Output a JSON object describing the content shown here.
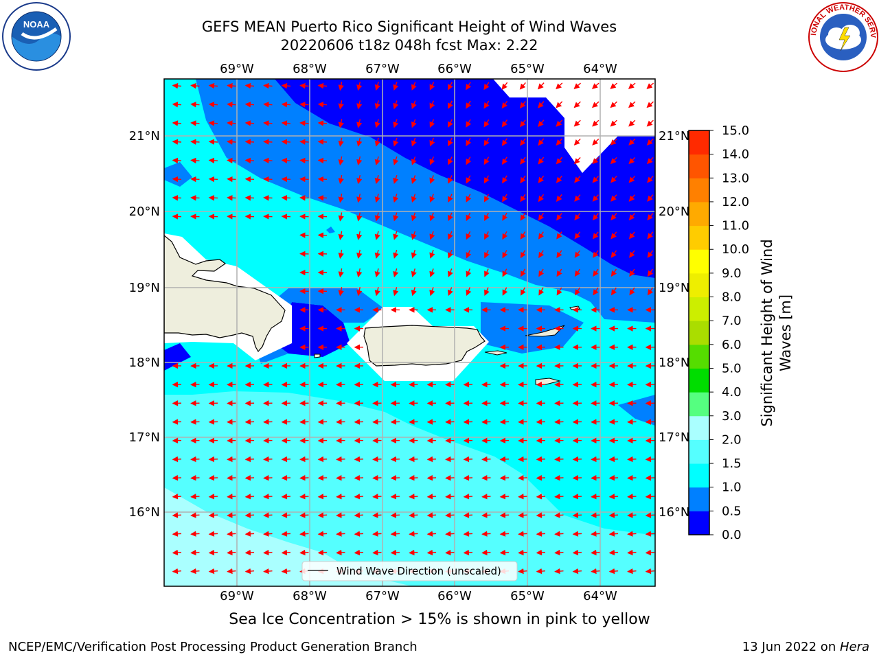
{
  "title": {
    "line1": "GEFS MEAN Puerto Rico Significant Height of Wind Waves",
    "line2": "20220606 t18z 048h fcst   Max: 2.22"
  },
  "map": {
    "lon_ticks": [
      "69°W",
      "68°W",
      "67°W",
      "66°W",
      "65°W",
      "64°W"
    ],
    "lat_ticks": [
      "21°N",
      "20°N",
      "19°N",
      "18°N",
      "17°N",
      "16°N"
    ],
    "legend_label": "Wind Wave Direction (unscaled)",
    "arrow_color": "#ff0000",
    "land_color": "#eeeedd"
  },
  "colorbar": {
    "label_line1": "Significant Height of Wind",
    "label_line2": "Waves [m]",
    "ticks": [
      "0.0",
      "0.5",
      "1.0",
      "1.5",
      "2.0",
      "3.0",
      "4.0",
      "5.0",
      "6.0",
      "7.0",
      "8.0",
      "9.0",
      "10.0",
      "11.0",
      "12.0",
      "13.0",
      "14.0",
      "15.0"
    ],
    "colors": [
      "#0000ff",
      "#0080ff",
      "#00ffff",
      "#55ffff",
      "#aaffff",
      "#55ff80",
      "#00dd00",
      "#55dd00",
      "#aadd00",
      "#ccee00",
      "#eeee00",
      "#ffff00",
      "#ffcc00",
      "#ffaa00",
      "#ff8000",
      "#ff5500",
      "#ff2a00"
    ]
  },
  "footer": {
    "sea_ice_note": "Sea Ice Concentration > 15% is shown in pink to yellow",
    "credit_left": "NCEP/EMC/Verification Post Processing Product Generation Branch",
    "credit_date": "13 Jun 2022 on ",
    "credit_machine": "Hera"
  },
  "logos": {
    "noaa_text": "NOAA",
    "nws_text": "NATIONAL WEATHER SERVICE"
  }
}
